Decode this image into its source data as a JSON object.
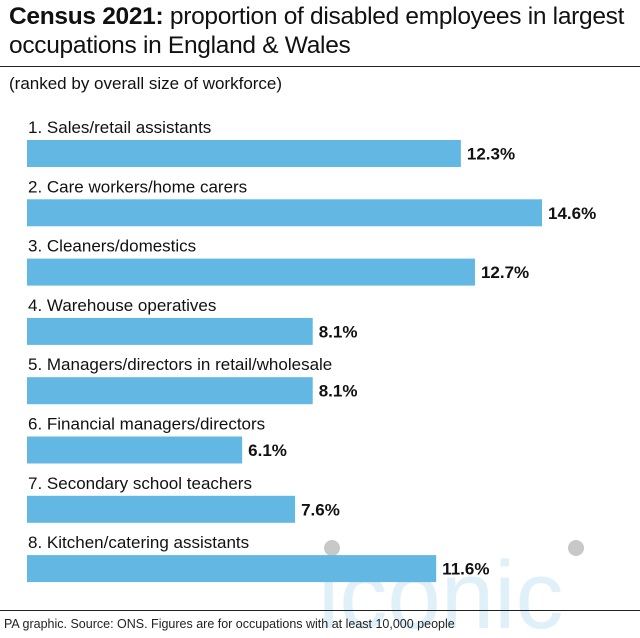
{
  "header": {
    "title_bold": "Census 2021:",
    "title_rest": " proportion of disabled employees in largest occupations in England & Wales",
    "subtitle": "(ranked by overall size of workforce)"
  },
  "footer": {
    "source": "PA graphic. Source: ONS. Figures are for occupations with at least 10,000 people"
  },
  "watermark": {
    "text": "iconic"
  },
  "colors": {
    "bar": "#62b8e2",
    "text": "#111111",
    "rule": "#222222",
    "watermark": "#dff0f8"
  },
  "chart_data": {
    "type": "bar",
    "orientation": "horizontal",
    "categories": [
      "1. Sales/retail assistants",
      "2. Care workers/home carers",
      "3. Cleaners/domestics",
      "4. Warehouse operatives",
      "5. Managers/directors in retail/wholesale",
      "6. Financial managers/directors",
      "7. Secondary school teachers",
      "8. Kitchen/catering assistants"
    ],
    "values": [
      12.3,
      14.6,
      12.7,
      8.1,
      8.1,
      6.1,
      7.6,
      11.6
    ],
    "value_labels": [
      "12.3%",
      "14.6%",
      "12.7%",
      "8.1%",
      "8.1%",
      "6.1%",
      "7.6%",
      "11.6%"
    ],
    "unit": "%",
    "grid": false,
    "legend": "none"
  }
}
